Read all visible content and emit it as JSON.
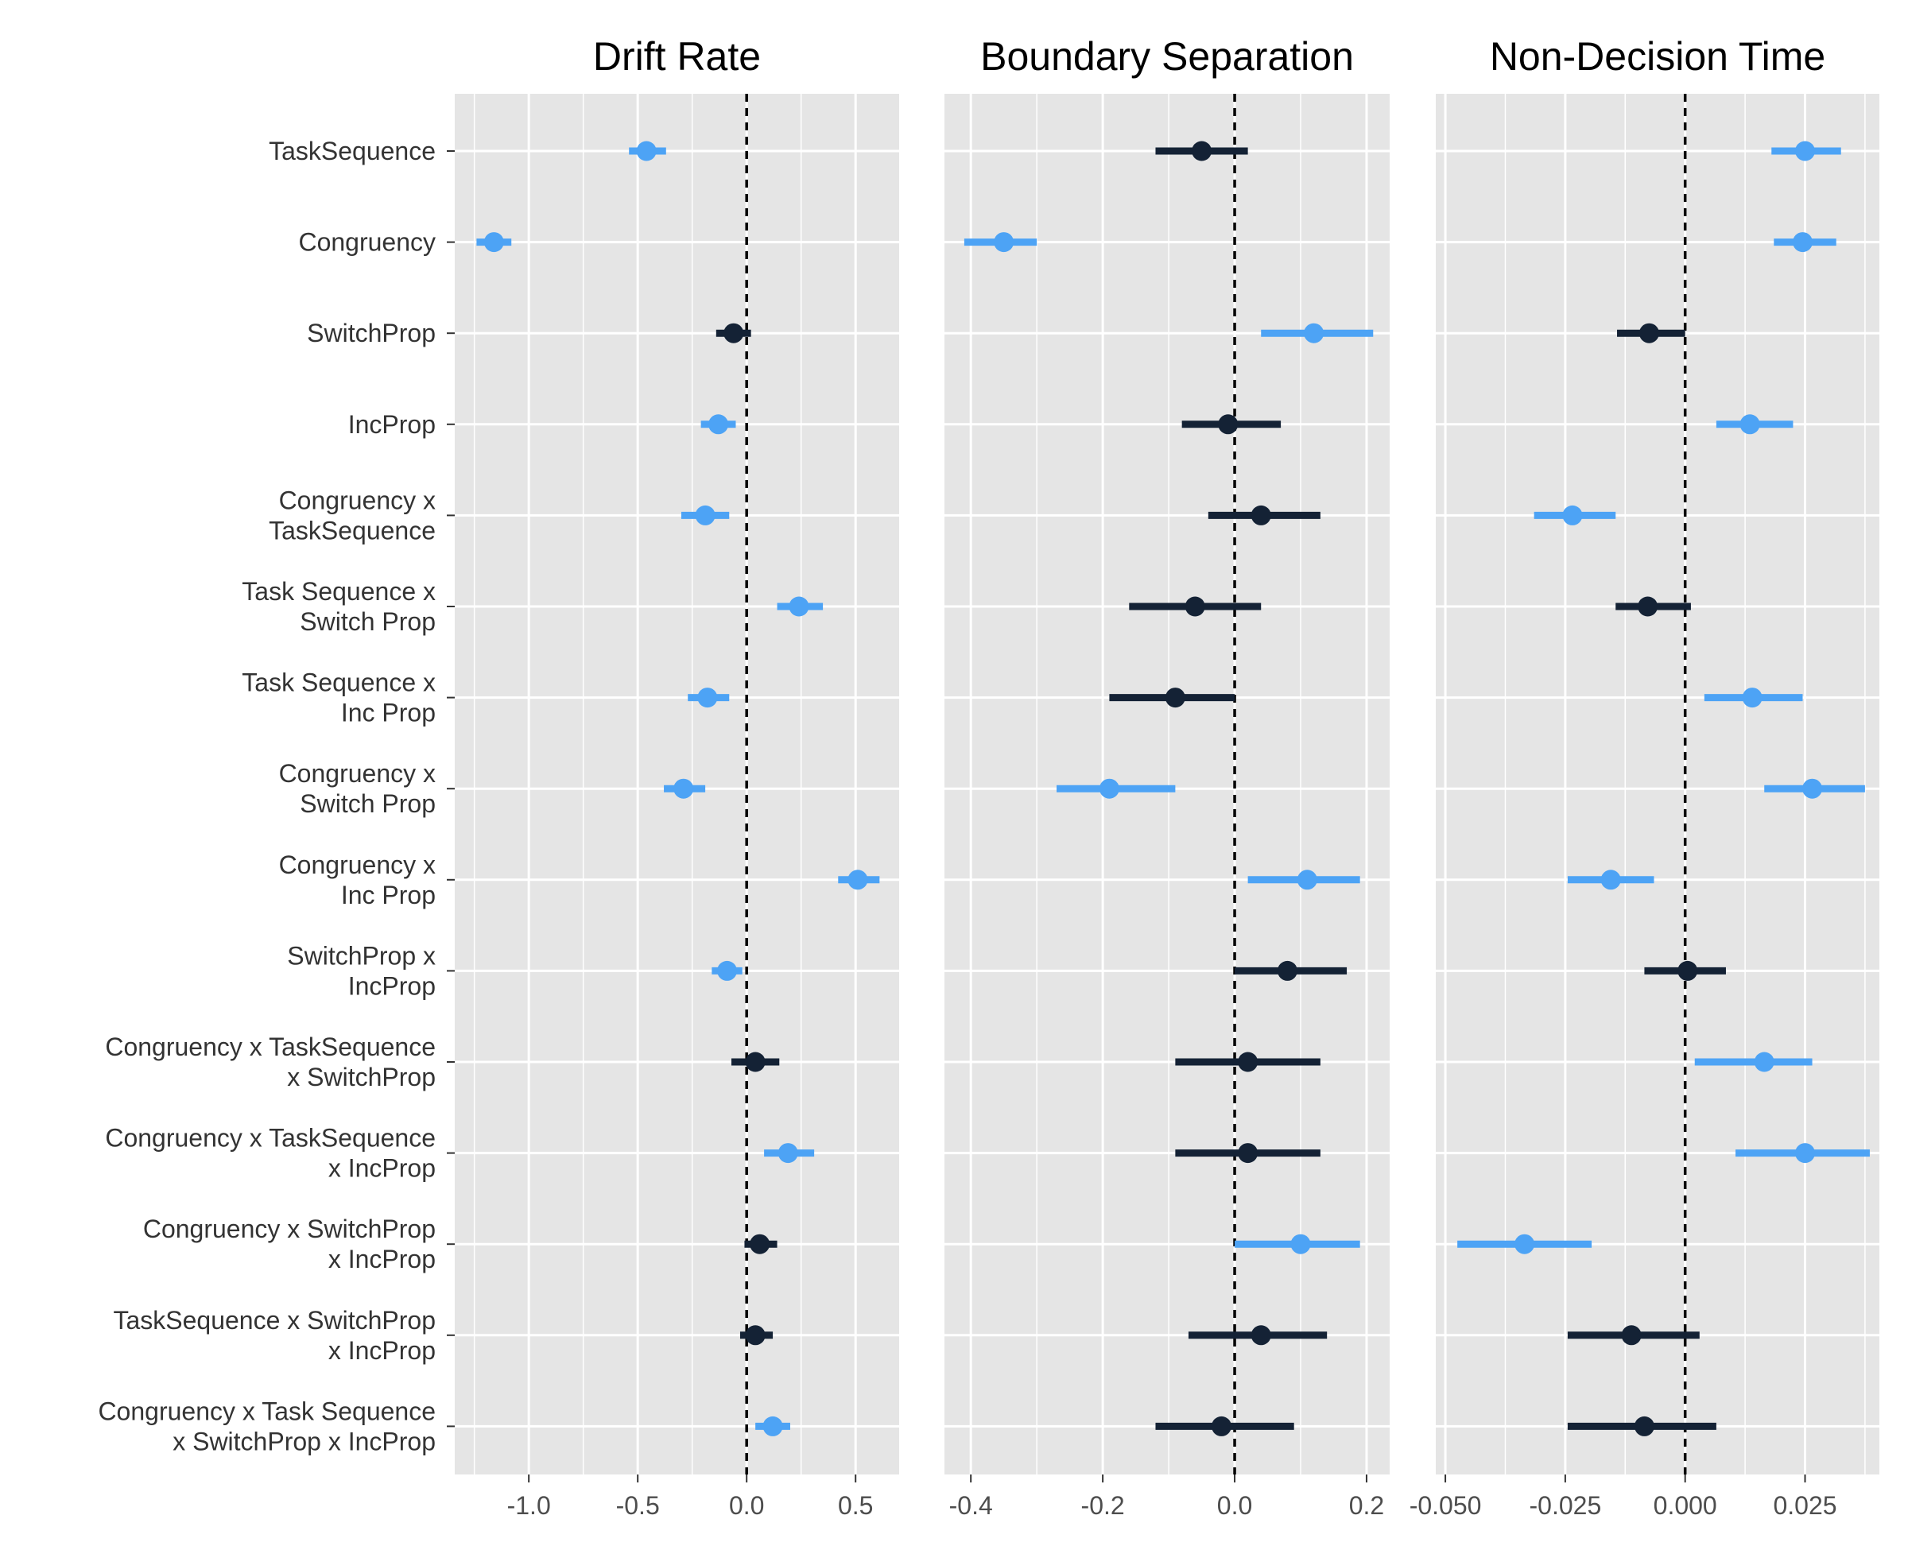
{
  "colors": {
    "panel_bg": "#e5e5e5",
    "grid": "#ffffff",
    "significant": "#4da3f5",
    "not_significant": "#142235",
    "zero_line": "#000000",
    "axis_text": "#4d4d4d",
    "row_text": "#333333"
  },
  "chart_data": {
    "type": "scatter",
    "subtype": "coefficient-plot-with-interval-bars",
    "legend": "none",
    "grid": true,
    "rows": [
      [
        "TaskSequence"
      ],
      [
        "Congruency"
      ],
      [
        "SwitchProp"
      ],
      [
        "IncProp"
      ],
      [
        "Congruency x",
        "TaskSequence"
      ],
      [
        "Task Sequence x",
        "Switch Prop"
      ],
      [
        "Task Sequence x",
        "Inc Prop"
      ],
      [
        "Congruency x",
        "Switch Prop"
      ],
      [
        "Congruency x",
        "Inc Prop"
      ],
      [
        "SwitchProp x",
        "IncProp"
      ],
      [
        "Congruency x TaskSequence",
        "x SwitchProp"
      ],
      [
        "Congruency x TaskSequence",
        "x IncProp"
      ],
      [
        "Congruency x SwitchProp",
        "x IncProp"
      ],
      [
        "TaskSequence x SwitchProp",
        "x IncProp"
      ],
      [
        "Congruency x Task Sequence",
        "x SwitchProp x IncProp"
      ]
    ],
    "panels": [
      {
        "title": "Drift Rate",
        "xlim": [
          -1.34,
          0.7
        ],
        "major_ticks": [
          -1.0,
          -0.5,
          0.0,
          0.5
        ],
        "tick_labels": [
          "-1.0",
          "-0.5",
          "0.0",
          "0.5"
        ],
        "minor_ticks": [
          -1.25,
          -0.75,
          -0.25,
          0.25
        ],
        "estimate": [
          -0.46,
          -1.16,
          -0.06,
          -0.13,
          -0.19,
          0.24,
          -0.18,
          -0.29,
          0.51,
          -0.09,
          0.04,
          0.19,
          0.06,
          0.04,
          0.12
        ],
        "lower": [
          -0.54,
          -1.24,
          -0.14,
          -0.21,
          -0.3,
          0.14,
          -0.27,
          -0.38,
          0.42,
          -0.16,
          -0.07,
          0.08,
          -0.01,
          -0.03,
          0.04
        ],
        "upper": [
          -0.37,
          -1.08,
          0.02,
          -0.05,
          -0.08,
          0.35,
          -0.08,
          -0.19,
          0.61,
          -0.02,
          0.15,
          0.31,
          0.14,
          0.12,
          0.2
        ],
        "significant": [
          true,
          true,
          false,
          true,
          true,
          true,
          true,
          true,
          true,
          true,
          false,
          true,
          false,
          false,
          true
        ]
      },
      {
        "title": "Boundary Separation",
        "xlim": [
          -0.44,
          0.235
        ],
        "major_ticks": [
          -0.4,
          -0.2,
          0.0,
          0.2
        ],
        "tick_labels": [
          "-0.4",
          "-0.2",
          "0.0",
          "0.2"
        ],
        "minor_ticks": [
          -0.3,
          -0.1,
          0.1
        ],
        "estimate": [
          -0.05,
          -0.35,
          0.12,
          -0.01,
          0.04,
          -0.06,
          -0.09,
          -0.19,
          0.11,
          0.08,
          0.02,
          0.02,
          0.1,
          0.04,
          -0.02
        ],
        "lower": [
          -0.12,
          -0.41,
          0.04,
          -0.08,
          -0.04,
          -0.16,
          -0.19,
          -0.27,
          0.02,
          0.0,
          -0.09,
          -0.09,
          0.0,
          -0.07,
          -0.12
        ],
        "upper": [
          0.02,
          -0.3,
          0.21,
          0.07,
          0.13,
          0.04,
          0.0,
          -0.09,
          0.19,
          0.17,
          0.13,
          0.13,
          0.19,
          0.14,
          0.09
        ],
        "significant": [
          false,
          true,
          true,
          false,
          false,
          false,
          false,
          true,
          true,
          false,
          false,
          false,
          true,
          false,
          false
        ]
      },
      {
        "title": "Non-Decision Time",
        "xlim": [
          -0.052,
          0.0405
        ],
        "major_ticks": [
          -0.05,
          -0.025,
          0.0,
          0.025
        ],
        "tick_labels": [
          "-0.050",
          "-0.025",
          "0.000",
          "0.025"
        ],
        "minor_ticks": [
          -0.0375,
          -0.0125,
          0.0125,
          0.0375
        ],
        "estimate": [
          0.025,
          0.0245,
          -0.0075,
          0.0135,
          -0.0235,
          -0.0078,
          0.014,
          0.0265,
          -0.0155,
          0.0005,
          0.0165,
          0.025,
          -0.0335,
          -0.0112,
          -0.0085
        ],
        "lower": [
          0.018,
          0.0185,
          -0.0142,
          0.0065,
          -0.0315,
          -0.0145,
          0.004,
          0.0165,
          -0.0245,
          -0.0085,
          0.002,
          0.0105,
          -0.0475,
          -0.0245,
          -0.0245
        ],
        "upper": [
          0.0325,
          0.0315,
          0.0,
          0.0225,
          -0.0145,
          0.0012,
          0.0245,
          0.0375,
          -0.0065,
          0.0085,
          0.0265,
          0.0385,
          -0.0195,
          0.003,
          0.0065
        ],
        "significant": [
          true,
          true,
          false,
          true,
          true,
          false,
          true,
          true,
          true,
          false,
          true,
          true,
          true,
          false,
          false
        ]
      }
    ]
  }
}
